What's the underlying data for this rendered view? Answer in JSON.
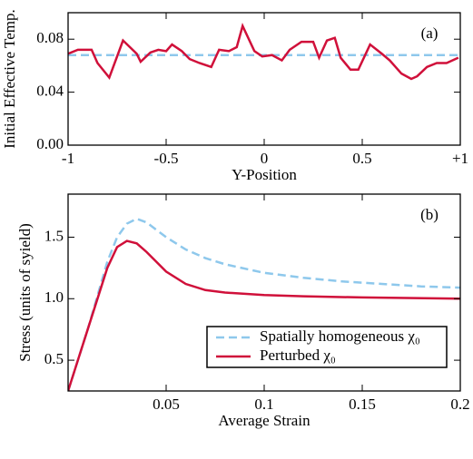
{
  "chart_data": [
    {
      "type": "line",
      "annotation": "(a)",
      "xlabel": "Y-Position",
      "ylabel": "Initial Effective Temp.",
      "xlim": [
        -1,
        1
      ],
      "ylim": [
        0,
        0.1
      ],
      "xticks": [
        -1,
        -0.5,
        0,
        0.5,
        {
          "value": 1,
          "label": "+1"
        }
      ],
      "yticks": [
        {
          "value": 0,
          "label": "0.00"
        },
        0.04,
        0.08
      ],
      "series": [
        {
          "color": "#8ec8ec",
          "style": "dashed",
          "x": [
            -1,
            1
          ],
          "values": [
            0.068,
            0.068
          ]
        },
        {
          "color": "#d0103a",
          "style": "solid",
          "x": [
            -1,
            -0.95,
            -0.88,
            -0.85,
            -0.79,
            -0.72,
            -0.65,
            -0.63,
            -0.58,
            -0.54,
            -0.5,
            -0.47,
            -0.42,
            -0.38,
            -0.33,
            -0.27,
            -0.23,
            -0.18,
            -0.14,
            -0.11,
            -0.05,
            -0.01,
            0.04,
            0.09,
            0.13,
            0.19,
            0.25,
            0.28,
            0.32,
            0.36,
            0.39,
            0.44,
            0.48,
            0.54,
            0.6,
            0.64,
            0.7,
            0.75,
            0.78,
            0.83,
            0.88,
            0.93,
            0.99
          ],
          "values": [
            0.069,
            0.072,
            0.072,
            0.062,
            0.051,
            0.079,
            0.069,
            0.063,
            0.07,
            0.072,
            0.071,
            0.076,
            0.071,
            0.065,
            0.062,
            0.059,
            0.072,
            0.071,
            0.074,
            0.09,
            0.071,
            0.067,
            0.068,
            0.064,
            0.072,
            0.078,
            0.078,
            0.066,
            0.079,
            0.081,
            0.066,
            0.057,
            0.057,
            0.076,
            0.069,
            0.064,
            0.054,
            0.05,
            0.052,
            0.059,
            0.062,
            0.062,
            0.066
          ]
        }
      ]
    },
    {
      "type": "line",
      "annotation": "(b)",
      "xlabel": "Average Strain",
      "ylabel": "Stress (units of syield)",
      "xlim": [
        0,
        0.2
      ],
      "ylim": [
        0.25,
        1.85
      ],
      "xticks": [
        0.05,
        0.1,
        0.15,
        0.2
      ],
      "yticks": [
        0.5,
        {
          "value": 1,
          "label": "1.0"
        },
        1.5
      ],
      "legend": "lower right",
      "series": [
        {
          "name": "Spatially homogeneous χ₀",
          "color": "#8ec8ec",
          "style": "dashed",
          "x": [
            0,
            0.01,
            0.02,
            0.025,
            0.03,
            0.035,
            0.04,
            0.05,
            0.06,
            0.07,
            0.08,
            0.1,
            0.12,
            0.14,
            0.16,
            0.18,
            0.2
          ],
          "values": [
            0.25,
            0.75,
            1.3,
            1.5,
            1.61,
            1.65,
            1.62,
            1.5,
            1.4,
            1.33,
            1.28,
            1.21,
            1.17,
            1.14,
            1.12,
            1.1,
            1.09
          ]
        },
        {
          "name": "Perturbed χ₀",
          "color": "#d0103a",
          "style": "solid",
          "x": [
            0,
            0.01,
            0.02,
            0.025,
            0.03,
            0.035,
            0.04,
            0.05,
            0.06,
            0.07,
            0.08,
            0.1,
            0.12,
            0.15,
            0.2
          ],
          "values": [
            0.25,
            0.75,
            1.25,
            1.42,
            1.47,
            1.45,
            1.38,
            1.22,
            1.12,
            1.07,
            1.05,
            1.03,
            1.02,
            1.01,
            1.0
          ]
        }
      ]
    }
  ]
}
